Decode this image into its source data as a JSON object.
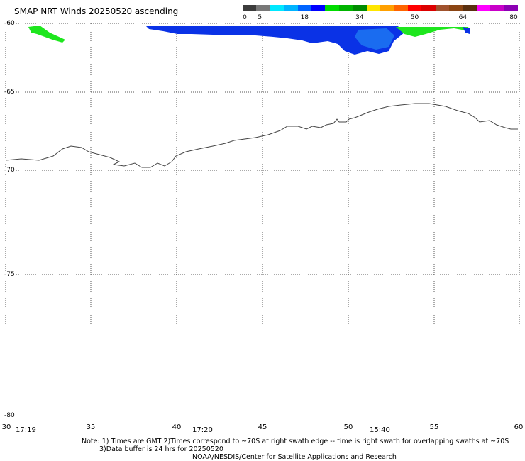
{
  "title": "SMAP NRT Winds 20250520 ascending",
  "colorbar": {
    "labels": [
      "0",
      "5",
      "18",
      "34",
      "50",
      "64",
      "80"
    ],
    "segments": [
      "#3c3c3c",
      "#787878",
      "#00e8ff",
      "#00b4ff",
      "#0064ff",
      "#0000ff",
      "#00dc00",
      "#00b400",
      "#008c00",
      "#ffe600",
      "#ffa000",
      "#ff6400",
      "#ff0000",
      "#dc0000",
      "#a0522d",
      "#8b4513",
      "#5a3010",
      "#ff00ff",
      "#c800c8",
      "#8c00b4"
    ]
  },
  "map": {
    "lat_labels": [
      "-60",
      "-65",
      "-70",
      "-75",
      "-80"
    ],
    "lon_labels": [
      "30",
      "35",
      "40",
      "45",
      "50",
      "55",
      "60"
    ],
    "times": [
      "17:19",
      "17:20",
      "15:40"
    ],
    "colors": {
      "low_wind": "#0a32e6",
      "mid_wind": "#1a6cf0",
      "strong_wind": "#1ee61e",
      "coast": "#444444",
      "grid": "#555555"
    }
  },
  "notes": {
    "line1": "Note: 1) Times are GMT 2)Times correspond to ~70S at right swath edge -- time is right swath for overlapping swaths at ~70S",
    "line2": "3)Data buffer is 24 hrs for 20250520",
    "line3": "NOAA/NESDIS/Center for Satellite Applications and Research"
  }
}
